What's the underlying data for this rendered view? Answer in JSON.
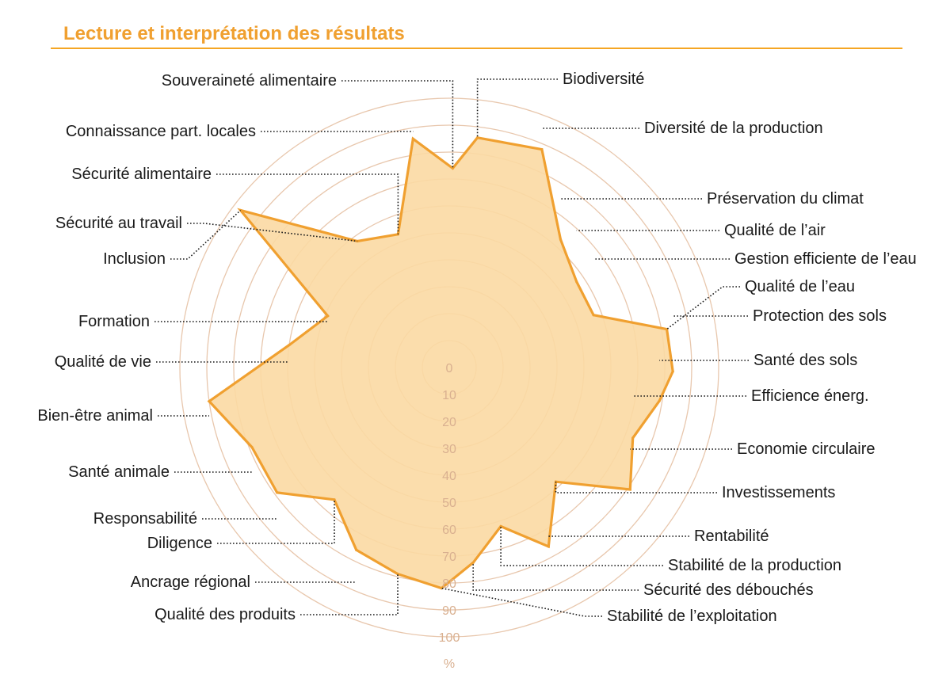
{
  "header": {
    "title": "Lecture et interprétation des résultats"
  },
  "colors": {
    "accent": "#f5a623",
    "title": "#f0a030",
    "polygon_fill": "#fbd9a3",
    "polygon_stroke": "#f0a030",
    "grid": "#e8c7ad",
    "tick_text": "#d9b090",
    "leader": "#1a1a1a"
  },
  "chart_data": {
    "type": "radar",
    "title": "",
    "unit": "%",
    "rlim": [
      0,
      100
    ],
    "rticks": [
      0,
      10,
      20,
      30,
      40,
      50,
      60,
      70,
      80,
      90,
      100
    ],
    "grid": true,
    "axes": [
      "Biodiversité",
      "Diversité de la production",
      "Préservation du climat",
      "Qualité de l’air",
      "Gestion efficiente de l’eau",
      "Qualité de l’eau",
      "Protection des sols",
      "Santé des sols",
      "Efficience énerg.",
      "Economie circulaire",
      "Investissements",
      "Rentabilité",
      "Stabilité de la production",
      "Sécurité des débouchés",
      "Stabilité de l’exploitation",
      "Qualité des produits",
      "Ancrage régional",
      "Diligence",
      "Responsabilité",
      "Santé animale",
      "Bien-être animal",
      "Qualité de vie",
      "Formation",
      "Inclusion",
      "Sécurité au travail",
      "Sécurité alimentaire",
      "Connaissance part. locales",
      "Souveraineté alimentaire"
    ],
    "values": [
      86,
      88,
      63,
      57,
      57,
      82,
      83,
      79,
      73,
      81,
      58,
      76,
      62,
      73,
      82,
      79,
      76,
      65,
      79,
      79,
      90,
      60,
      49,
      97,
      58,
      53,
      86,
      74
    ]
  }
}
